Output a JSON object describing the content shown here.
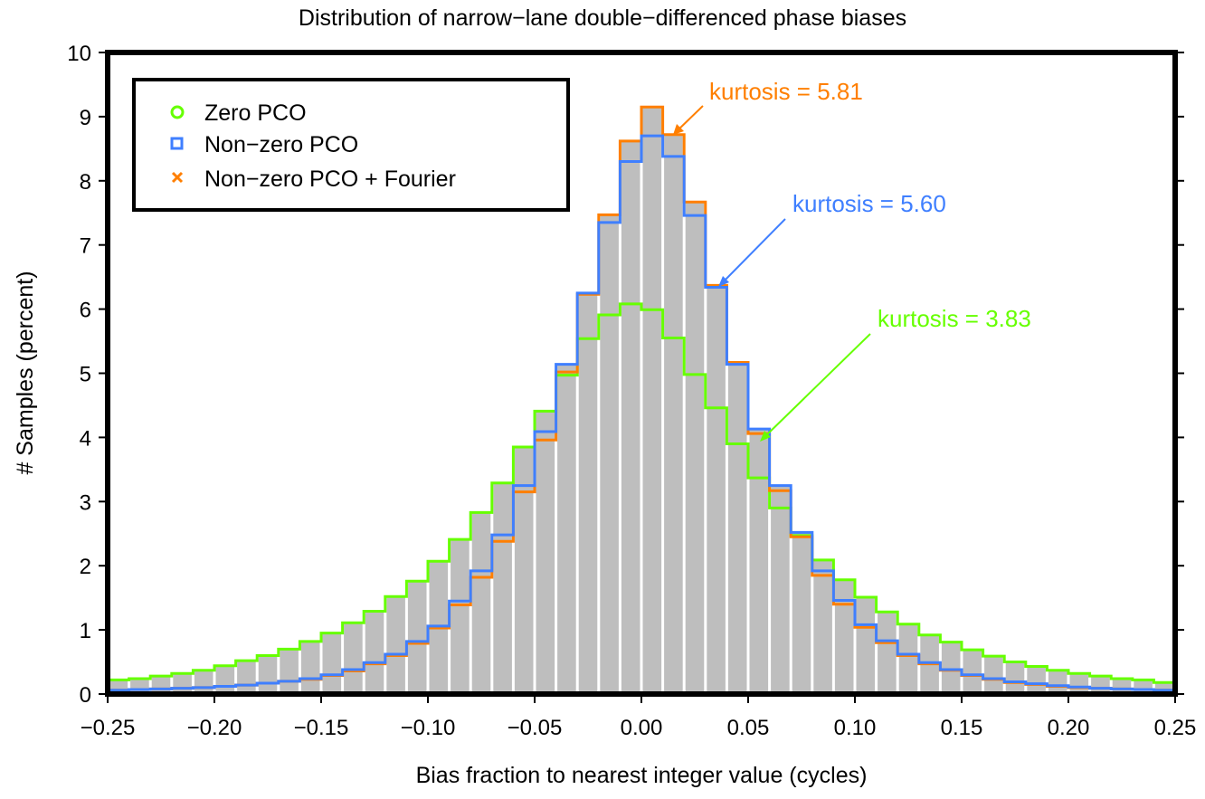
{
  "chart_data": {
    "type": "bar",
    "title": "Distribution of narrow−lane double−differenced phase biases",
    "xlabel": "Bias fraction to nearest integer value (cycles)",
    "ylabel": "# Samples (percent)",
    "xlim": [
      -0.25,
      0.25
    ],
    "ylim": [
      0,
      10
    ],
    "bin_width": 0.01,
    "xticks": [
      "−0.25",
      "−0.20",
      "−0.15",
      "−0.10",
      "−0.05",
      "0.00",
      "0.05",
      "0.10",
      "0.15",
      "0.20",
      "0.25"
    ],
    "xtick_values": [
      -0.25,
      -0.2,
      -0.15,
      -0.1,
      -0.05,
      0,
      0.05,
      0.1,
      0.15,
      0.2,
      0.25
    ],
    "yticks": [
      "0",
      "1",
      "2",
      "3",
      "4",
      "5",
      "6",
      "7",
      "8",
      "9",
      "10"
    ],
    "grid": false,
    "legend_position": "top-left",
    "bin_centers": [
      -0.245,
      -0.235,
      -0.225,
      -0.215,
      -0.205,
      -0.195,
      -0.185,
      -0.175,
      -0.165,
      -0.155,
      -0.145,
      -0.135,
      -0.125,
      -0.115,
      -0.105,
      -0.095,
      -0.085,
      -0.075,
      -0.065,
      -0.055,
      -0.045,
      -0.035,
      -0.025,
      -0.015,
      -0.005,
      0.005,
      0.015,
      0.025,
      0.035,
      0.045,
      0.055,
      0.065,
      0.075,
      0.085,
      0.095,
      0.105,
      0.115,
      0.125,
      0.135,
      0.145,
      0.155,
      0.165,
      0.175,
      0.185,
      0.195,
      0.205,
      0.215,
      0.225,
      0.235,
      0.245
    ],
    "series": [
      {
        "name": "Zero PCO",
        "color": "#66ff00",
        "marker": "circle",
        "values": [
          0.22,
          0.24,
          0.28,
          0.32,
          0.37,
          0.44,
          0.52,
          0.6,
          0.7,
          0.82,
          0.95,
          1.11,
          1.29,
          1.52,
          1.76,
          2.07,
          2.41,
          2.83,
          3.29,
          3.85,
          4.41,
          4.97,
          5.54,
          5.91,
          6.08,
          5.99,
          5.55,
          4.98,
          4.46,
          3.9,
          3.37,
          2.9,
          2.47,
          2.09,
          1.78,
          1.51,
          1.28,
          1.09,
          0.92,
          0.81,
          0.69,
          0.59,
          0.5,
          0.43,
          0.37,
          0.32,
          0.28,
          0.24,
          0.22,
          0.18
        ]
      },
      {
        "name": "Non−zero PCO",
        "color": "#3f7fff",
        "marker": "square",
        "values": [
          0.06,
          0.07,
          0.08,
          0.09,
          0.1,
          0.12,
          0.14,
          0.17,
          0.2,
          0.24,
          0.3,
          0.38,
          0.49,
          0.62,
          0.82,
          1.06,
          1.45,
          1.92,
          2.48,
          3.25,
          4.09,
          5.14,
          6.25,
          7.35,
          8.3,
          8.7,
          8.38,
          7.46,
          6.34,
          5.14,
          4.13,
          3.25,
          2.52,
          1.92,
          1.46,
          1.08,
          0.83,
          0.62,
          0.49,
          0.38,
          0.3,
          0.24,
          0.19,
          0.16,
          0.13,
          0.11,
          0.09,
          0.08,
          0.07,
          0.06
        ]
      },
      {
        "name": "Non−zero PCO + Fourier",
        "color": "#ff7f00",
        "marker": "x",
        "values": [
          0.06,
          0.07,
          0.08,
          0.09,
          0.1,
          0.12,
          0.14,
          0.17,
          0.2,
          0.23,
          0.29,
          0.36,
          0.47,
          0.6,
          0.79,
          1.03,
          1.39,
          1.82,
          2.38,
          3.15,
          3.96,
          5.02,
          6.23,
          7.47,
          8.62,
          9.15,
          8.72,
          7.67,
          6.37,
          5.17,
          4.06,
          3.17,
          2.45,
          1.85,
          1.4,
          1.04,
          0.8,
          0.6,
          0.47,
          0.37,
          0.29,
          0.23,
          0.18,
          0.15,
          0.12,
          0.1,
          0.09,
          0.08,
          0.07,
          0.06
        ]
      }
    ],
    "annotations": [
      {
        "text": "kurtosis = 5.81",
        "color": "#ff7f00",
        "series": "Non−zero PCO + Fourier"
      },
      {
        "text": "kurtosis = 5.60",
        "color": "#3f7fff",
        "series": "Non−zero PCO"
      },
      {
        "text": "kurtosis = 3.83",
        "color": "#66ff00",
        "series": "Zero PCO"
      }
    ],
    "bar_color": "#bebebe"
  }
}
